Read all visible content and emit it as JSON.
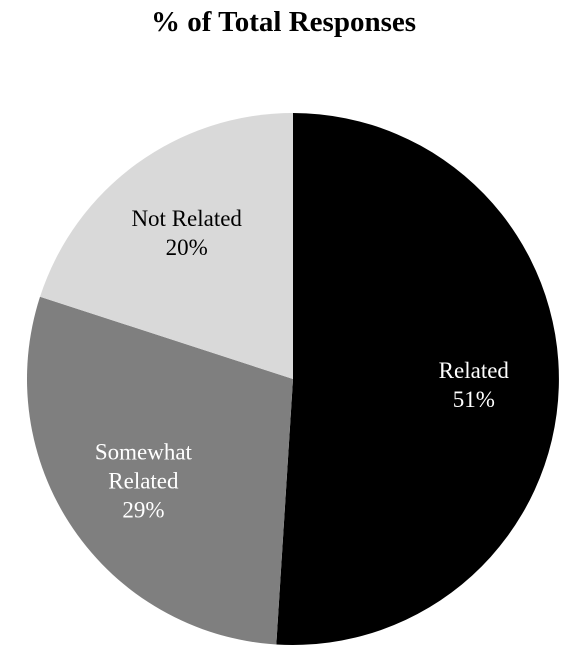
{
  "chart_data": {
    "type": "pie",
    "title": "% of Total Responses",
    "slices": [
      {
        "label_lines": [
          "Related",
          "51%"
        ],
        "category": "Related",
        "value": 51,
        "color": "#000000",
        "text_color": "#ffffff"
      },
      {
        "label_lines": [
          "Somewhat",
          "Related",
          "29%"
        ],
        "category": "Somewhat Related",
        "value": 29,
        "color": "#7f7f7f",
        "text_color": "#ffffff"
      },
      {
        "label_lines": [
          "Not Related",
          "20%"
        ],
        "category": "Not Related",
        "value": 20,
        "color": "#d9d9d9",
        "text_color": "#000000"
      }
    ]
  }
}
